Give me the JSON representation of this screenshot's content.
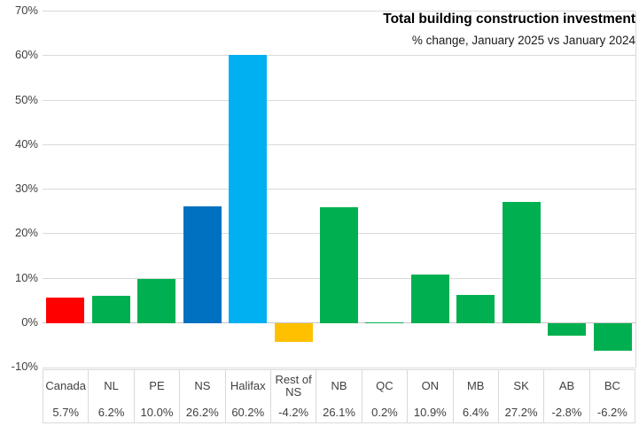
{
  "title": "Total building construction investment",
  "subtitle": "% change, January 2025 vs January 2024",
  "chart_data": {
    "type": "bar",
    "categories": [
      "Canada",
      "NL",
      "PE",
      "NS",
      "Halifax",
      "Rest of NS",
      "NB",
      "QC",
      "ON",
      "MB",
      "SK",
      "AB",
      "BC"
    ],
    "values": [
      5.7,
      6.2,
      10.0,
      26.2,
      60.2,
      -4.2,
      26.1,
      0.2,
      10.9,
      6.4,
      27.2,
      -2.8,
      -6.2
    ],
    "value_labels": [
      "5.7%",
      "6.2%",
      "10.0%",
      "26.2%",
      "60.2%",
      "-4.2%",
      "26.1%",
      "0.2%",
      "10.9%",
      "6.4%",
      "27.2%",
      "-2.8%",
      "-6.2%"
    ],
    "bar_colors": [
      "#FF0000",
      "#00B050",
      "#00B050",
      "#0070C0",
      "#00B0F0",
      "#FFC000",
      "#00B050",
      "#00B050",
      "#00B050",
      "#00B050",
      "#00B050",
      "#00B050",
      "#00B050"
    ],
    "title": "Total building construction investment",
    "subtitle": "% change, January 2025 vs January 2024",
    "xlabel": "",
    "ylabel": "",
    "ylim": [
      -10,
      70
    ],
    "y_ticks": [
      "70%",
      "60%",
      "50%",
      "40%",
      "30%",
      "20%",
      "10%",
      "0%",
      "-10%"
    ],
    "y_tick_values": [
      70,
      60,
      50,
      40,
      30,
      20,
      10,
      0,
      -10
    ],
    "grid": true,
    "legend": "none",
    "gridline_color": "#D9D9D9",
    "axis_text_color": "#404040"
  }
}
